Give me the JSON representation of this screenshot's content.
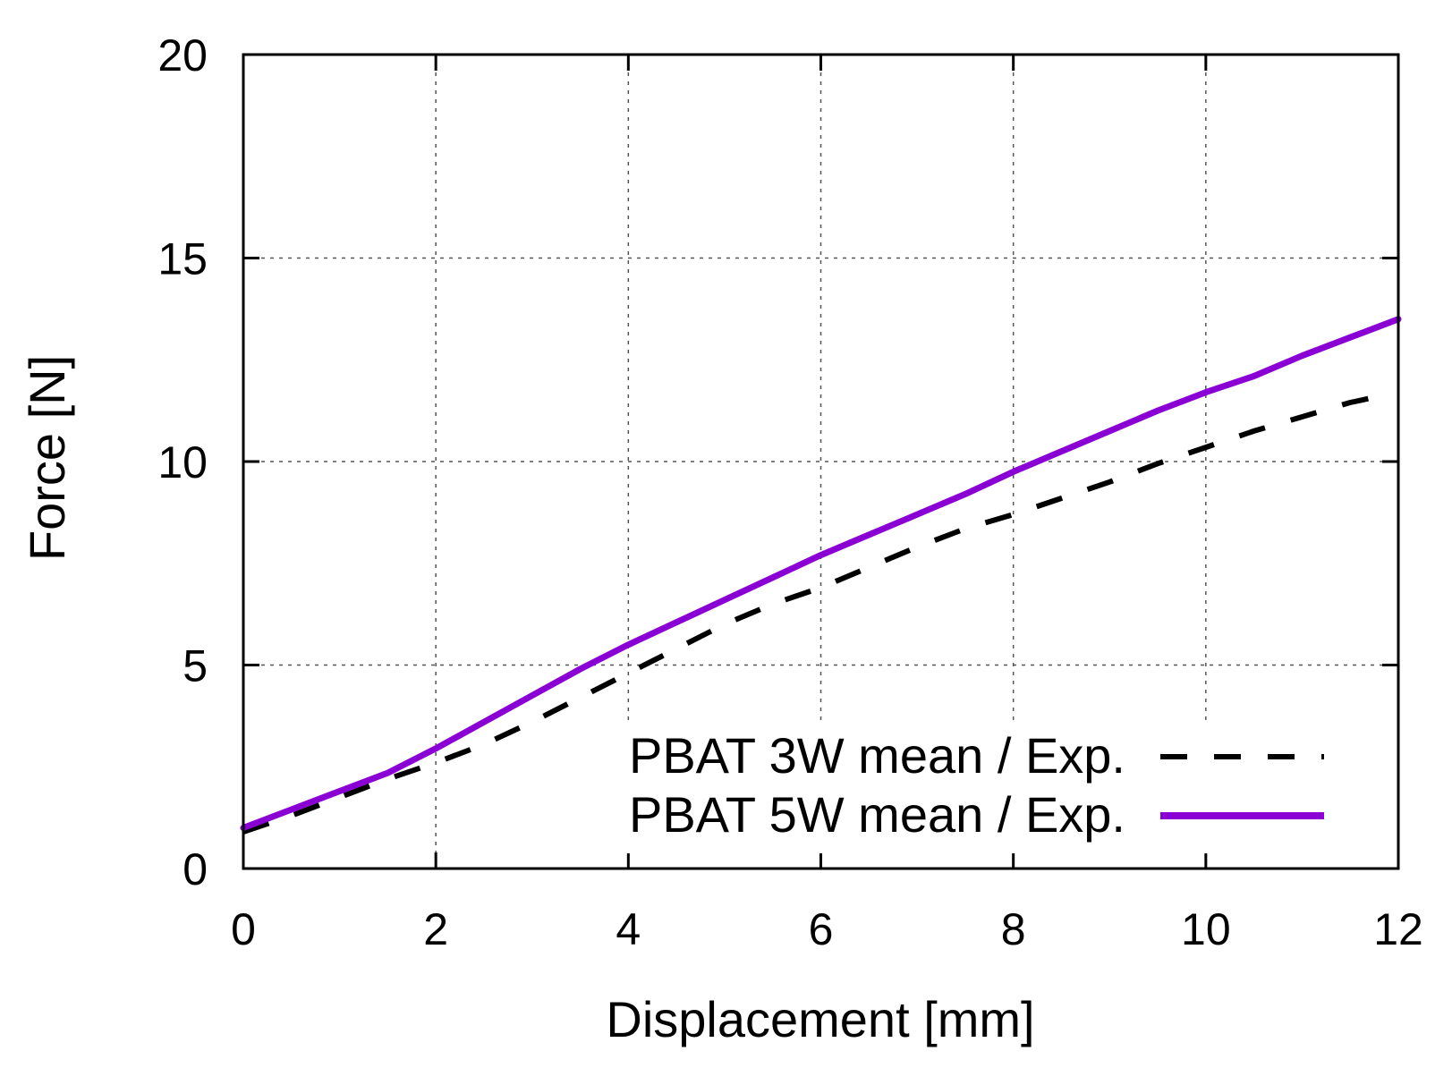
{
  "chart_data": {
    "type": "line",
    "title": "",
    "xlabel": "Displacement [mm]",
    "ylabel": "Force [N]",
    "xlim": [
      0,
      12
    ],
    "ylim": [
      0,
      20
    ],
    "xticks": [
      0,
      2,
      4,
      6,
      8,
      10,
      12
    ],
    "yticks": [
      0,
      5,
      10,
      15,
      20
    ],
    "xtick_labels": [
      "0",
      "2",
      "4",
      "6",
      "8",
      "10",
      "12"
    ],
    "ytick_labels": [
      "0",
      "5",
      "10",
      "15",
      "20"
    ],
    "grid": true,
    "legend_position": "bottom-right",
    "series": [
      {
        "name": "PBAT 3W mean / Exp.",
        "color": "#000000",
        "style": "dashed",
        "x": [
          0,
          0.5,
          1.0,
          1.5,
          2.0,
          2.5,
          3.0,
          3.5,
          4.0,
          4.5,
          5.0,
          5.5,
          6.0,
          6.5,
          7.0,
          7.5,
          8.0,
          8.5,
          9.0,
          9.5,
          10.0,
          10.5,
          11.0,
          11.5,
          11.9
        ],
        "y": [
          0.9,
          1.3,
          1.75,
          2.2,
          2.6,
          3.05,
          3.6,
          4.2,
          4.8,
          5.4,
          6.0,
          6.5,
          6.9,
          7.4,
          7.9,
          8.35,
          8.7,
          9.1,
          9.5,
          9.95,
          10.35,
          10.75,
          11.1,
          11.45,
          11.65
        ]
      },
      {
        "name": "PBAT 5W mean / Exp.",
        "color": "#8a00d4",
        "style": "solid",
        "x": [
          0,
          0.5,
          1.0,
          1.5,
          2.0,
          2.5,
          3.0,
          3.5,
          4.0,
          4.5,
          5.0,
          5.5,
          6.0,
          6.5,
          7.0,
          7.5,
          8.0,
          8.5,
          9.0,
          9.5,
          10.0,
          10.5,
          11.0,
          11.5,
          12.0
        ],
        "y": [
          1.0,
          1.45,
          1.9,
          2.35,
          2.95,
          3.6,
          4.25,
          4.9,
          5.5,
          6.05,
          6.6,
          7.15,
          7.7,
          8.2,
          8.7,
          9.2,
          9.75,
          10.25,
          10.75,
          11.25,
          11.7,
          12.1,
          12.6,
          13.05,
          13.5
        ]
      }
    ]
  }
}
